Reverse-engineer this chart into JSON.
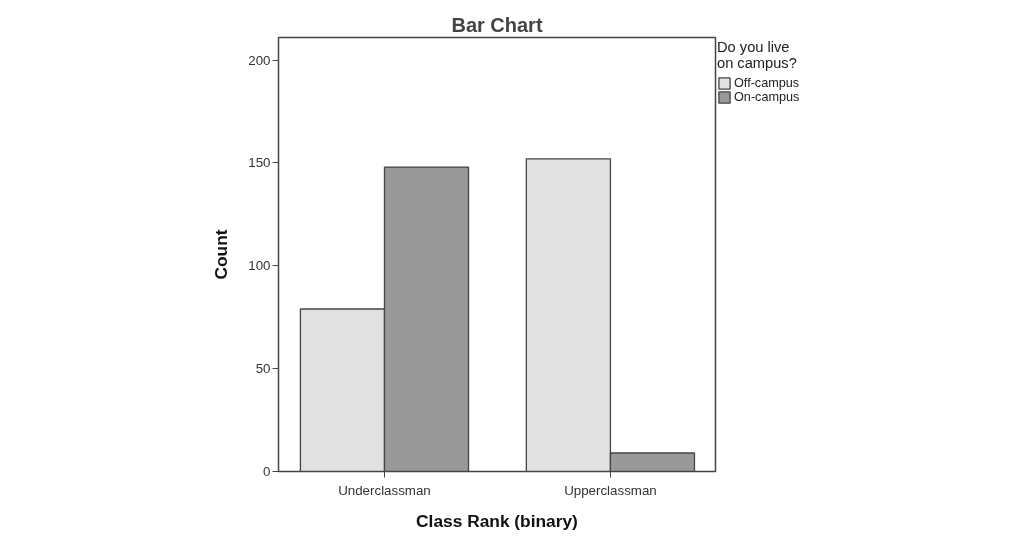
{
  "chart_data": {
    "type": "bar",
    "title": "Bar Chart",
    "xlabel": "Class Rank (binary)",
    "ylabel": "Count",
    "legend_title": "Do you live on campus?",
    "categories": [
      "Underclassman",
      "Upperclassman"
    ],
    "series": [
      {
        "name": "Off-campus",
        "color": "#e1e1e1",
        "values": [
          79,
          152
        ]
      },
      {
        "name": "On-campus",
        "color": "#999999",
        "values": [
          148,
          9
        ]
      }
    ],
    "ylim": [
      0,
      211
    ],
    "yticks": [
      0,
      50,
      100,
      150,
      200
    ],
    "legend": "top right"
  }
}
